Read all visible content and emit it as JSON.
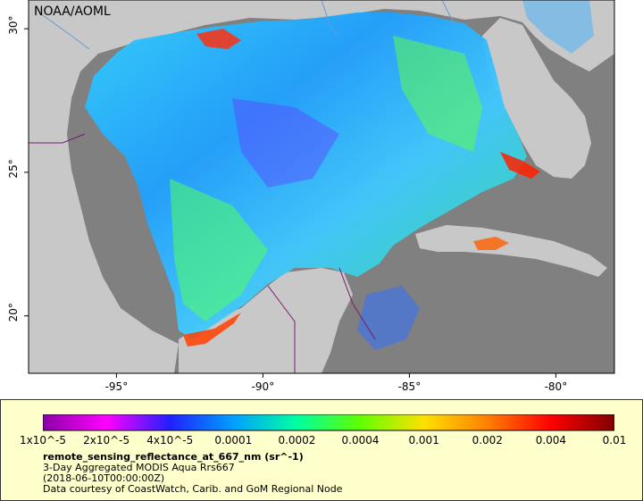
{
  "map": {
    "credit_label": "NOAA/AOML",
    "lon_ticks": [
      "-95°",
      "-90°",
      "-85°",
      "-80°"
    ],
    "lat_ticks": [
      "30°",
      "25°",
      "20°"
    ],
    "lon_values": [
      -95,
      -90,
      -85,
      -80
    ],
    "lat_values": [
      30,
      25,
      20
    ],
    "lon_range": [
      -98,
      -78
    ],
    "lat_range": [
      18,
      31
    ],
    "land_color": "#c8c8c8",
    "nodata_color": "#808080",
    "variable": "remote_sensing_reflectance_at_667_nm"
  },
  "legend": {
    "title": "remote_sensing_reflectance_at_667_nm (sr^-1)",
    "subtitle1": "3-Day Aggregated MODIS Aqua Rrs667",
    "subtitle2": "(2018-06-10T00:00:00Z)",
    "credit": "Data courtesy of CoastWatch, Carib. and GoM Regional Node",
    "ticks": [
      "1x10^-5",
      "2x10^-5",
      "4x10^-5",
      "0.0001",
      "0.0002",
      "0.0004",
      "0.001",
      "0.002",
      "0.004",
      "0.01"
    ],
    "scale": "log",
    "colors": [
      "#8b00a8",
      "#ff00ff",
      "#2020ff",
      "#00a0ff",
      "#00ffa0",
      "#60ff00",
      "#ffe000",
      "#ff8000",
      "#ff0000",
      "#800000"
    ]
  }
}
